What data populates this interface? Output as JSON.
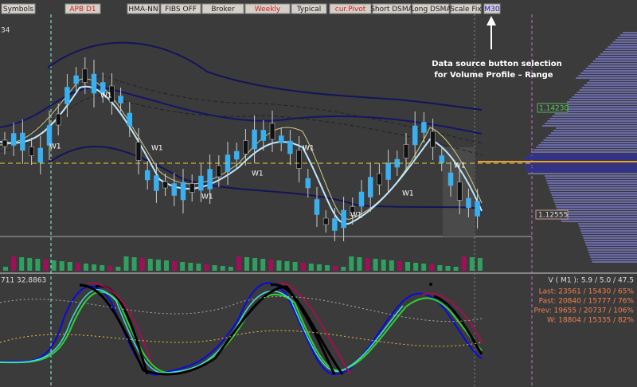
{
  "toolbar": {
    "buttons": [
      {
        "label": "Symbols"
      },
      {
        "label": "APB D1"
      },
      {
        "label": "HMA-NN"
      },
      {
        "label": "FIBS OFF"
      },
      {
        "label": "Broker"
      },
      {
        "label": "Weekly"
      },
      {
        "label": "Typical"
      },
      {
        "label": "cur.Pivot"
      },
      {
        "label": "Short DSMA"
      },
      {
        "label": "Long DSMA"
      },
      {
        "label": "Scale Fix"
      },
      {
        "label": "M30"
      }
    ]
  },
  "annotation": {
    "lines": [
      "Data source button selection",
      "for Volume Profile – Range"
    ]
  },
  "main_chart": {
    "scale_label": "34",
    "price_labels": [
      "1.14230",
      "1.12555"
    ],
    "wave_labels": [
      "W1",
      "W1",
      "W1",
      "W1",
      "W1",
      "W1",
      "W1",
      "W1",
      "W1"
    ]
  },
  "oscillator": {
    "header": "711 32.8863",
    "title": "V ( M1 ): 5.9 / 5.0 / 47.5",
    "stats": [
      "Last: 23561 / 15430 / 65%",
      "Past: 20840 / 15777 / 76%",
      "Prev: 19655 / 20737 / 106%",
      "W: 18804 / 15335 / 82%"
    ]
  }
}
